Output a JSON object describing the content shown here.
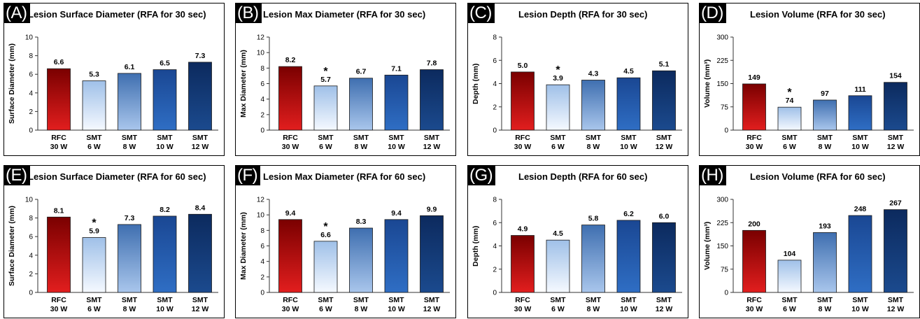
{
  "chart_data": [
    {
      "panel_label": "(A)",
      "title": "Lesion Surface Diameter (RFA for 30 sec)",
      "type": "bar",
      "ylabel": "Surface Diameter (mm)",
      "ylim": [
        0,
        10
      ],
      "yticks": [
        "0",
        "2",
        "4",
        "6",
        "8",
        "10"
      ],
      "categories": [
        [
          "RFC",
          "30 W"
        ],
        [
          "SMT",
          "6 W"
        ],
        [
          "SMT",
          "8 W"
        ],
        [
          "SMT",
          "10 W"
        ],
        [
          "SMT",
          "12 W"
        ]
      ],
      "values": [
        6.6,
        5.3,
        6.1,
        6.5,
        7.3
      ],
      "value_labels": [
        "6.6",
        "5.3",
        "6.1",
        "6.5",
        "7.3"
      ],
      "significant": [
        false,
        false,
        false,
        false,
        false
      ]
    },
    {
      "panel_label": "(B)",
      "title": "Lesion Max Diameter (RFA for 30 sec)",
      "type": "bar",
      "ylabel": "Max Diameter (mm)",
      "ylim": [
        0,
        12
      ],
      "yticks": [
        "0",
        "2",
        "4",
        "6",
        "8",
        "10",
        "12"
      ],
      "categories": [
        [
          "RFC",
          "30 W"
        ],
        [
          "SMT",
          "6 W"
        ],
        [
          "SMT",
          "8 W"
        ],
        [
          "SMT",
          "10 W"
        ],
        [
          "SMT",
          "12 W"
        ]
      ],
      "values": [
        8.2,
        5.7,
        6.7,
        7.1,
        7.8
      ],
      "value_labels": [
        "8.2",
        "5.7",
        "6.7",
        "7.1",
        "7.8"
      ],
      "significant": [
        false,
        true,
        false,
        false,
        false
      ]
    },
    {
      "panel_label": "(C)",
      "title": "Lesion Depth (RFA for 30 sec)",
      "type": "bar",
      "ylabel": "Depth (mm)",
      "ylim": [
        0,
        8
      ],
      "yticks": [
        "0",
        "2",
        "4",
        "6",
        "8"
      ],
      "categories": [
        [
          "RFC",
          "30 W"
        ],
        [
          "SMT",
          "6 W"
        ],
        [
          "SMT",
          "8 W"
        ],
        [
          "SMT",
          "10 W"
        ],
        [
          "SMT",
          "12 W"
        ]
      ],
      "values": [
        5.0,
        3.9,
        4.3,
        4.5,
        5.1
      ],
      "value_labels": [
        "5.0",
        "3.9",
        "4.3",
        "4.5",
        "5.1"
      ],
      "significant": [
        false,
        true,
        false,
        false,
        false
      ]
    },
    {
      "panel_label": "(D)",
      "title": "Lesion Volume (RFA for 30 sec)",
      "type": "bar",
      "ylabel": "Volume (mm³)",
      "ylim": [
        0,
        300
      ],
      "yticks": [
        "0",
        "75",
        "150",
        "225",
        "300"
      ],
      "categories": [
        [
          "RFC",
          "30 W"
        ],
        [
          "SMT",
          "6 W"
        ],
        [
          "SMT",
          "8 W"
        ],
        [
          "SMT",
          "10 W"
        ],
        [
          "SMT",
          "12 W"
        ]
      ],
      "values": [
        149,
        74,
        97,
        111,
        154
      ],
      "value_labels": [
        "149",
        "74",
        "97",
        "111",
        "154"
      ],
      "significant": [
        false,
        true,
        false,
        false,
        false
      ]
    },
    {
      "panel_label": "(E)",
      "title": "Lesion Surface Diameter (RFA for 60 sec)",
      "type": "bar",
      "ylabel": "Surface Diameter (mm)",
      "ylim": [
        0,
        10
      ],
      "yticks": [
        "0",
        "2",
        "4",
        "6",
        "8",
        "10"
      ],
      "categories": [
        [
          "RFC",
          "30 W"
        ],
        [
          "SMT",
          "6 W"
        ],
        [
          "SMT",
          "8 W"
        ],
        [
          "SMT",
          "10 W"
        ],
        [
          "SMT",
          "12 W"
        ]
      ],
      "values": [
        8.1,
        5.9,
        7.3,
        8.2,
        8.4
      ],
      "value_labels": [
        "8.1",
        "5.9",
        "7.3",
        "8.2",
        "8.4"
      ],
      "significant": [
        false,
        true,
        false,
        false,
        false
      ]
    },
    {
      "panel_label": "(F)",
      "title": "Lesion Max Diameter (RFA for 60 sec)",
      "type": "bar",
      "ylabel": "Max Diameter (mm)",
      "ylim": [
        0,
        12
      ],
      "yticks": [
        "0",
        "2",
        "4",
        "6",
        "8",
        "10",
        "12"
      ],
      "categories": [
        [
          "RFC",
          "30 W"
        ],
        [
          "SMT",
          "6 W"
        ],
        [
          "SMT",
          "8 W"
        ],
        [
          "SMT",
          "10 W"
        ],
        [
          "SMT",
          "12 W"
        ]
      ],
      "values": [
        9.4,
        6.6,
        8.3,
        9.4,
        9.9
      ],
      "value_labels": [
        "9.4",
        "6.6",
        "8.3",
        "9.4",
        "9.9"
      ],
      "significant": [
        false,
        true,
        false,
        false,
        false
      ]
    },
    {
      "panel_label": "(G)",
      "title": "Lesion Depth (RFA for 60 sec)",
      "type": "bar",
      "ylabel": "Depth (mm)",
      "ylim": [
        0,
        8
      ],
      "yticks": [
        "0",
        "2",
        "4",
        "6",
        "8"
      ],
      "categories": [
        [
          "RFC",
          "30 W"
        ],
        [
          "SMT",
          "6 W"
        ],
        [
          "SMT",
          "8 W"
        ],
        [
          "SMT",
          "10 W"
        ],
        [
          "SMT",
          "12 W"
        ]
      ],
      "values": [
        4.9,
        4.5,
        5.8,
        6.2,
        6.0
      ],
      "value_labels": [
        "4.9",
        "4.5",
        "5.8",
        "6.2",
        "6.0"
      ],
      "significant": [
        false,
        false,
        false,
        false,
        false
      ]
    },
    {
      "panel_label": "(H)",
      "title": "Lesion Volume (RFA for 60 sec)",
      "type": "bar",
      "ylabel": "Volume (mm³)",
      "ylim": [
        0,
        300
      ],
      "yticks": [
        "0",
        "75",
        "150",
        "225",
        "300"
      ],
      "categories": [
        [
          "RFC",
          "30 W"
        ],
        [
          "SMT",
          "6 W"
        ],
        [
          "SMT",
          "8 W"
        ],
        [
          "SMT",
          "10 W"
        ],
        [
          "SMT",
          "12 W"
        ]
      ],
      "values": [
        200,
        104,
        193,
        248,
        267
      ],
      "value_labels": [
        "200",
        "104",
        "193",
        "248",
        "267"
      ],
      "significant": [
        false,
        false,
        false,
        false,
        false
      ]
    }
  ],
  "significance_marker": "*",
  "bar_gradients": [
    {
      "top": "#7a0000",
      "bottom": "#e21e1e"
    },
    {
      "top": "#9fc0e8",
      "bottom": "#f5f9ff"
    },
    {
      "top": "#3f6fb0",
      "bottom": "#a9c6ec"
    },
    {
      "top": "#1a4793",
      "bottom": "#2f6ec4"
    },
    {
      "top": "#0c2a5e",
      "bottom": "#1b4a8e"
    }
  ]
}
